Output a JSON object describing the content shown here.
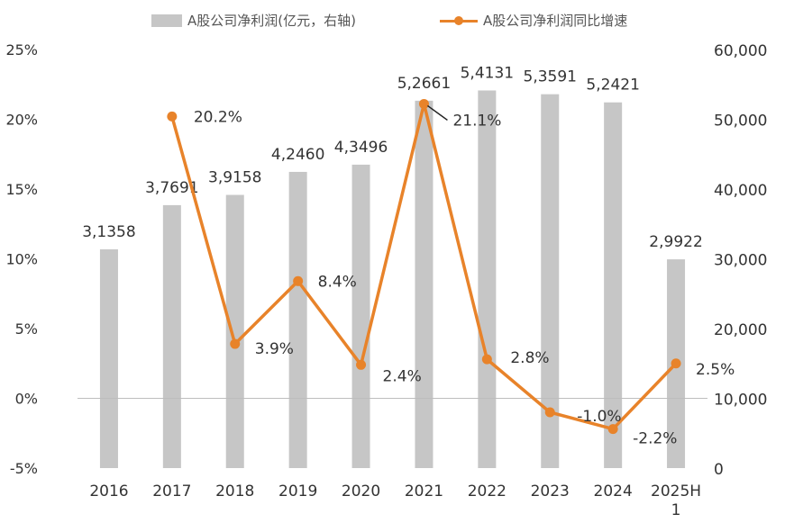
{
  "legend": {
    "bar_label": "A股公司净利润(亿元，右轴)",
    "line_label": "A股公司净利润同比增速"
  },
  "colors": {
    "bar": "#c6c6c6",
    "line": "#e8832a",
    "axis": "#bdbdbd",
    "text": "#333333"
  },
  "chart_data": {
    "type": "bar+line",
    "categories": [
      "2016",
      "2017",
      "2018",
      "2019",
      "2020",
      "2021",
      "2022",
      "2023",
      "2024",
      "2025H1"
    ],
    "category_labels": [
      [
        "2016"
      ],
      [
        "2017"
      ],
      [
        "2018"
      ],
      [
        "2019"
      ],
      [
        "2020"
      ],
      [
        "2021"
      ],
      [
        "2022"
      ],
      [
        "2023"
      ],
      [
        "2024"
      ],
      [
        "2025H",
        "1"
      ]
    ],
    "series": [
      {
        "name": "A股公司净利润(亿元，右轴)",
        "type": "bar",
        "axis": "right",
        "values": [
          31358,
          37691,
          39158,
          42460,
          43496,
          52661,
          54131,
          53591,
          52421,
          29922
        ],
        "data_labels": [
          "3,1358",
          "3,7691",
          "3,9158",
          "4,2460",
          "4,3496",
          "5,2661",
          "5,4131",
          "5,3591",
          "5,2421",
          "2,9922"
        ]
      },
      {
        "name": "A股公司净利润同比增速",
        "type": "line",
        "axis": "left",
        "values": [
          null,
          20.2,
          3.9,
          8.4,
          2.4,
          21.1,
          2.8,
          -1.0,
          -2.2,
          2.5
        ],
        "data_labels": [
          "",
          "20.2%",
          "3.9%",
          "8.4%",
          "2.4%",
          "21.1%",
          "2.8%",
          "-1.0%",
          "-2.2%",
          "2.5%"
        ]
      }
    ],
    "left_axis": {
      "min": -5,
      "max": 25,
      "ticks": [
        25,
        20,
        15,
        10,
        5,
        0,
        -5
      ],
      "tick_labels": [
        "25%",
        "20%",
        "15%",
        "10%",
        "5%",
        "0%",
        "-5%"
      ]
    },
    "right_axis": {
      "min": 0,
      "max": 60000,
      "ticks": [
        60000,
        50000,
        40000,
        30000,
        20000,
        10000,
        0
      ],
      "tick_labels": [
        "60,000",
        "50,000",
        "40,000",
        "30,000",
        "20,000",
        "10,000",
        "0"
      ]
    },
    "grid": false,
    "legend_position": "top"
  }
}
